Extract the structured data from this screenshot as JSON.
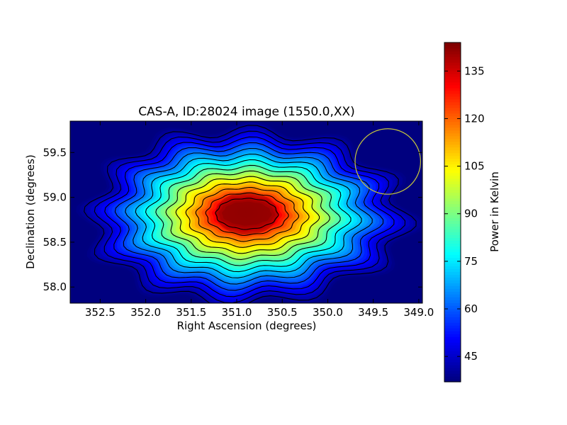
{
  "chart_data": {
    "type": "heatmap",
    "title": "CAS-A, ID:28024 image (1550.0,XX)",
    "xlabel": "Right Ascension (degrees)",
    "ylabel": "Declination (degrees)",
    "x_axis_inverted": true,
    "xlim": [
      352.83,
      348.96
    ],
    "ylim": [
      57.82,
      59.85
    ],
    "xticks": [
      352.5,
      352.0,
      351.5,
      351.0,
      350.5,
      350.0,
      349.5,
      349.0
    ],
    "xtick_labels": [
      "352.5",
      "352.0",
      "351.5",
      "351.0",
      "350.5",
      "350.0",
      "349.5",
      "349.0"
    ],
    "yticks": [
      58.0,
      58.5,
      59.0,
      59.5
    ],
    "ytick_labels": [
      "58.0",
      "58.5",
      "59.0",
      "59.5"
    ],
    "colormap": "jet",
    "colorbar": {
      "label": "Power in Kelvin",
      "range": [
        37,
        144
      ],
      "ticks": [
        45,
        60,
        75,
        90,
        105,
        120,
        135
      ],
      "tick_labels": [
        "45",
        "60",
        "75",
        "90",
        "105",
        "120",
        "135"
      ]
    },
    "peak": {
      "ra": 350.89,
      "dec": 58.82,
      "value": 143
    },
    "background_value": 37,
    "contour_count": 14,
    "beam_circle": {
      "ra": 349.34,
      "dec": 59.4,
      "radius_deg": 0.36,
      "color": "#c8c83c"
    },
    "grid": false,
    "legend": "none"
  }
}
